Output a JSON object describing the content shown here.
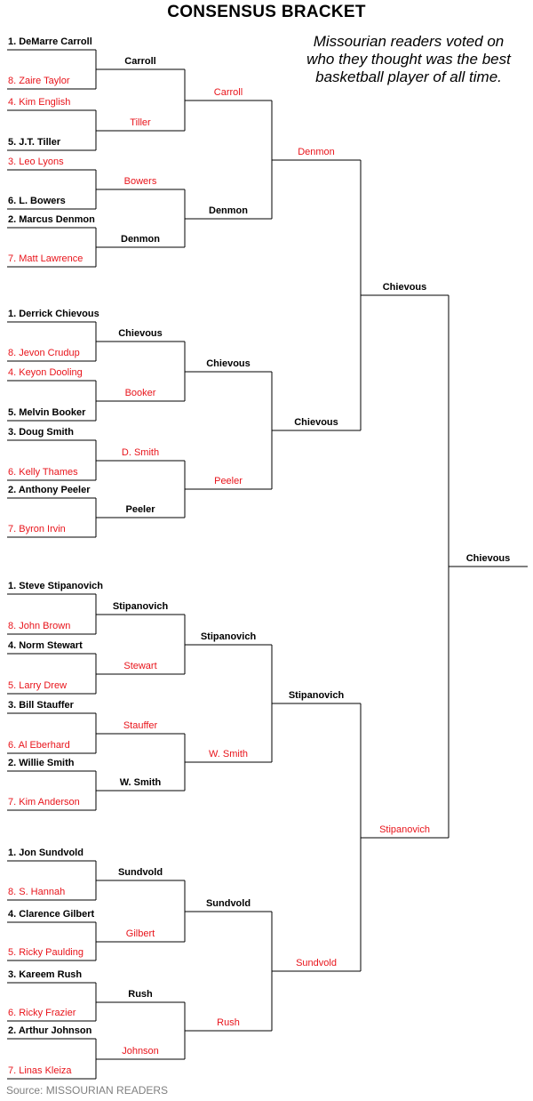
{
  "title": "CONSENSUS BRACKET",
  "subtitle": "Missourian readers voted on who they thought was the best basketball player of all time.",
  "source": "Source: MISSOURIAN READERS",
  "colors": {
    "winner": "#000000",
    "loser": "#e8141b",
    "source": "#808080"
  },
  "bracket": {
    "round1": [
      {
        "name": "1. DeMarre Carroll",
        "winner": true
      },
      {
        "name": "8. Zaire Taylor",
        "winner": false
      },
      {
        "name": "4. Kim English",
        "winner": false
      },
      {
        "name": "5. J.T. Tiller",
        "winner": true
      },
      {
        "name": "3. Leo Lyons",
        "winner": false
      },
      {
        "name": "6. L. Bowers",
        "winner": true
      },
      {
        "name": "2. Marcus Denmon",
        "winner": true
      },
      {
        "name": "7. Matt Lawrence",
        "winner": false
      },
      {
        "name": "1. Derrick Chievous",
        "winner": true
      },
      {
        "name": "8. Jevon Crudup",
        "winner": false
      },
      {
        "name": "4. Keyon Dooling",
        "winner": false
      },
      {
        "name": "5. Melvin Booker",
        "winner": true
      },
      {
        "name": "3. Doug Smith",
        "winner": true
      },
      {
        "name": "6. Kelly Thames",
        "winner": false
      },
      {
        "name": "2. Anthony Peeler",
        "winner": true
      },
      {
        "name": "7. Byron Irvin",
        "winner": false
      },
      {
        "name": "1. Steve Stipanovich",
        "winner": true
      },
      {
        "name": "8. John Brown",
        "winner": false
      },
      {
        "name": "4. Norm Stewart",
        "winner": true
      },
      {
        "name": "5. Larry Drew",
        "winner": false
      },
      {
        "name": "3. Bill Stauffer",
        "winner": true
      },
      {
        "name": "6. Al Eberhard",
        "winner": false
      },
      {
        "name": "2. Willie Smith",
        "winner": true
      },
      {
        "name": "7. Kim Anderson",
        "winner": false
      },
      {
        "name": "1. Jon Sundvold",
        "winner": true
      },
      {
        "name": "8. S. Hannah",
        "winner": false
      },
      {
        "name": "4. Clarence Gilbert",
        "winner": true
      },
      {
        "name": "5. Ricky Paulding",
        "winner": false
      },
      {
        "name": "3. Kareem Rush",
        "winner": true
      },
      {
        "name": "6. Ricky Frazier",
        "winner": false
      },
      {
        "name": "2. Arthur Johnson",
        "winner": true
      },
      {
        "name": "7. Linas Kleiza",
        "winner": false
      }
    ],
    "round2": [
      {
        "name": "Carroll",
        "winner": true
      },
      {
        "name": "Tiller",
        "winner": false
      },
      {
        "name": "Bowers",
        "winner": false
      },
      {
        "name": "Denmon",
        "winner": true
      },
      {
        "name": "Chievous",
        "winner": true
      },
      {
        "name": "Booker",
        "winner": false
      },
      {
        "name": "D. Smith",
        "winner": false
      },
      {
        "name": "Peeler",
        "winner": true
      },
      {
        "name": "Stipanovich",
        "winner": true
      },
      {
        "name": "Stewart",
        "winner": false
      },
      {
        "name": "Stauffer",
        "winner": false
      },
      {
        "name": "W. Smith",
        "winner": true
      },
      {
        "name": "Sundvold",
        "winner": true
      },
      {
        "name": "Gilbert",
        "winner": false
      },
      {
        "name": "Rush",
        "winner": true
      },
      {
        "name": "Johnson",
        "winner": false
      }
    ],
    "round3": [
      {
        "name": "Carroll",
        "winner": false
      },
      {
        "name": "Denmon",
        "winner": true
      },
      {
        "name": "Chievous",
        "winner": true
      },
      {
        "name": "Peeler",
        "winner": false
      },
      {
        "name": "Stipanovich",
        "winner": true
      },
      {
        "name": "W. Smith",
        "winner": false
      },
      {
        "name": "Sundvold",
        "winner": true
      },
      {
        "name": "Rush",
        "winner": false
      }
    ],
    "round4": [
      {
        "name": "Denmon",
        "winner": false
      },
      {
        "name": "Chievous",
        "winner": true
      },
      {
        "name": "Stipanovich",
        "winner": true
      },
      {
        "name": "Sundvold",
        "winner": false
      }
    ],
    "round5": [
      {
        "name": "Chievous",
        "winner": true
      },
      {
        "name": "Stipanovich",
        "winner": false
      }
    ],
    "champion": {
      "name": "Chievous",
      "winner": true
    }
  }
}
